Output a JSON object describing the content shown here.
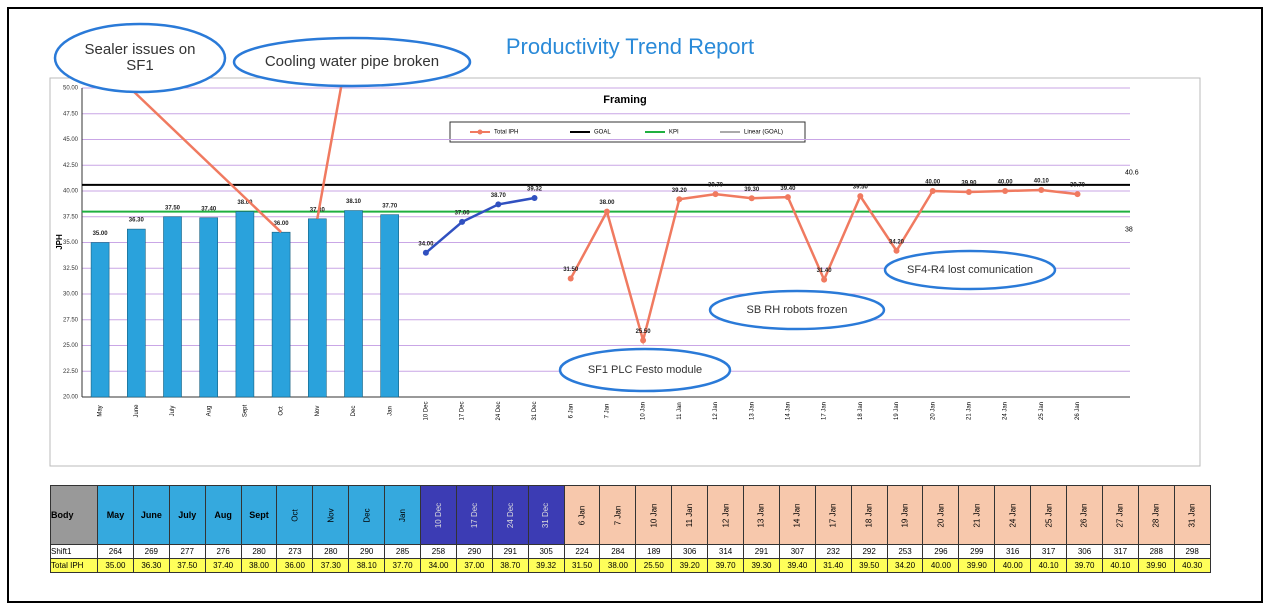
{
  "chart_data": {
    "type": "combo",
    "title": "Productivity Trend Report",
    "subtitle": "Framing",
    "categories": [
      "May",
      "June",
      "July",
      "Aug",
      "Sept",
      "Oct",
      "Nov",
      "Dec",
      "Jan",
      "10 Dec",
      "17 Dec",
      "24 Dec",
      "31 Dec",
      "6 Jan",
      "7 Jan",
      "10 Jan",
      "11 Jan",
      "12 Jan",
      "13 Jan",
      "14 Jan",
      "17 Jan",
      "18 Jan",
      "19 Jan",
      "20 Jan",
      "21 Jan",
      "24 Jan",
      "25 Jan",
      "26 Jan"
    ],
    "series": [
      {
        "type": "bar",
        "color": "#2aa2dc",
        "values": [
          35.0,
          36.3,
          37.5,
          37.4,
          38.0,
          36.0,
          37.3,
          38.1,
          37.7,
          null,
          null,
          null,
          null,
          null,
          null,
          null,
          null,
          null,
          null,
          null,
          null,
          null,
          null,
          null,
          null,
          null,
          null,
          null
        ],
        "value_labels": [
          "35.00",
          "36.30",
          "37.50",
          "37.40",
          "38.00",
          "36.00",
          "37.30",
          "38.10",
          "37.70",
          null,
          null,
          null,
          null,
          null,
          null,
          null,
          null,
          null,
          null,
          null,
          null,
          null,
          null,
          null,
          null,
          null,
          null,
          null
        ]
      },
      {
        "type": "line",
        "color": "#3050c0",
        "values": [
          null,
          null,
          null,
          null,
          null,
          null,
          null,
          null,
          null,
          34.0,
          37.0,
          38.7,
          39.32,
          null,
          null,
          null,
          null,
          null,
          null,
          null,
          null,
          null,
          null,
          null,
          null,
          null,
          null,
          null
        ],
        "value_labels": [
          null,
          null,
          null,
          null,
          null,
          null,
          null,
          null,
          null,
          "34.00",
          "37.00",
          "38.70",
          "39.32",
          null,
          null,
          null,
          null,
          null,
          null,
          null,
          null,
          null,
          null,
          null,
          null,
          null,
          null,
          null
        ]
      },
      {
        "type": "line",
        "name": "Total IPH",
        "color": "#f07a60",
        "marker": true,
        "values": [
          null,
          null,
          null,
          null,
          null,
          null,
          null,
          null,
          null,
          null,
          null,
          null,
          null,
          31.5,
          38.0,
          25.5,
          39.2,
          39.7,
          39.3,
          39.4,
          31.4,
          39.5,
          34.2,
          40.0,
          39.9,
          40.0,
          40.1,
          39.7
        ],
        "value_labels": [
          null,
          null,
          null,
          null,
          null,
          null,
          null,
          null,
          null,
          null,
          null,
          null,
          null,
          "31.50",
          "38.00",
          "25.50",
          "39.20",
          "39.70",
          "39.30",
          "39.40",
          "31.40",
          "39.50",
          "34.20",
          "40.00",
          "39.90",
          "40.00",
          "40.10",
          "39.70"
        ]
      }
    ],
    "reference_lines": [
      {
        "name": "GOAL",
        "value": 40.6,
        "label": "40.6",
        "color": "#000000"
      },
      {
        "name": "KPI",
        "value": 38,
        "label": "38",
        "color": "#20b040"
      }
    ],
    "trendline_name": "Linear (GOAL)",
    "ylim": [
      20,
      50
    ],
    "yticks": [
      {
        "value": 20,
        "label": "20.00"
      },
      {
        "value": 22.5,
        "label": "22.50"
      },
      {
        "value": 25,
        "label": "25.00"
      },
      {
        "value": 27.5,
        "label": "27.50"
      },
      {
        "value": 30,
        "label": "30.00"
      },
      {
        "value": 32.5,
        "label": "32.50"
      },
      {
        "value": 35,
        "label": "35.00"
      },
      {
        "value": 37.5,
        "label": "37.50"
      },
      {
        "value": 40,
        "label": "40.00"
      },
      {
        "value": 42.5,
        "label": "42.50"
      },
      {
        "value": 45,
        "label": "45.00"
      },
      {
        "value": 47.5,
        "label": "47.50"
      },
      {
        "value": 50,
        "label": "50.00"
      }
    ],
    "y_label": "JPH",
    "grid": true,
    "annotations": [
      {
        "text": "Sealer issues on SF1",
        "target": 5
      },
      {
        "text": "Cooling water pipe broken",
        "target": 6
      },
      {
        "text": "SF1 PLC Festo module",
        "target": null
      },
      {
        "text": "SB RH robots frozen",
        "target": null
      },
      {
        "text": "SF4-R4 lost comunication",
        "target": null
      }
    ]
  },
  "table": {
    "header": "Body",
    "columns": [
      "May",
      "June",
      "July",
      "Aug",
      "Sept",
      "Oct",
      "Nov",
      "Dec",
      "Jan",
      "10 Dec",
      "17 Dec",
      "24 Dec",
      "31 Dec",
      "6 Jan",
      "7 Jan",
      "10 Jan",
      "11 Jan",
      "12 Jan",
      "13 Jan",
      "14 Jan",
      "17 Jan",
      "18 Jan",
      "19 Jan",
      "20 Jan",
      "21 Jan",
      "24 Jan",
      "25 Jan",
      "26 Jan",
      "27 Jan",
      "28 Jan",
      "31 Jan"
    ],
    "rows": [
      {
        "label": "Shift1",
        "cells": [
          "264",
          "269",
          "277",
          "276",
          "280",
          "273",
          "280",
          "290",
          "285",
          "258",
          "290",
          "291",
          "305",
          "224",
          "284",
          "189",
          "306",
          "314",
          "291",
          "307",
          "232",
          "292",
          "253",
          "296",
          "299",
          "316",
          "317",
          "306",
          "317",
          "288",
          "298"
        ]
      },
      {
        "label": "Total IPH",
        "cells": [
          "35.00",
          "36.30",
          "37.50",
          "37.40",
          "38.00",
          "36.00",
          "37.30",
          "38.10",
          "37.70",
          "34.00",
          "37.00",
          "38.70",
          "39.32",
          "31.50",
          "38.00",
          "25.50",
          "39.20",
          "39.70",
          "39.30",
          "39.40",
          "31.40",
          "39.50",
          "34.20",
          "40.00",
          "39.90",
          "40.00",
          "40.10",
          "39.70",
          "40.10",
          "39.90",
          "40.30"
        ]
      }
    ]
  }
}
